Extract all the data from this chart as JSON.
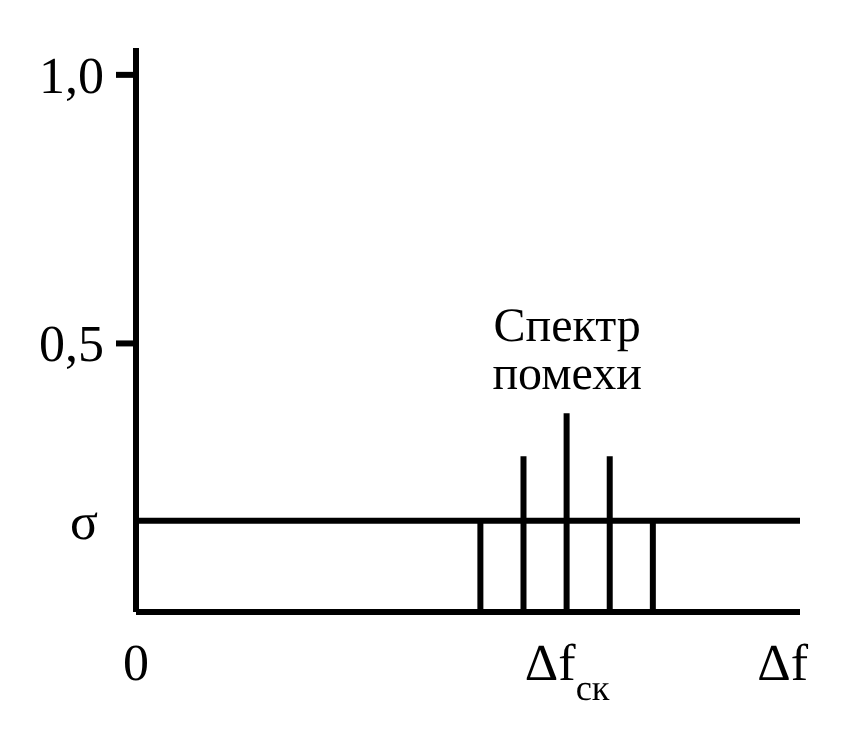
{
  "chart_data": {
    "type": "bar",
    "categories": [
      "0",
      null,
      null,
      null,
      null,
      null,
      null,
      null,
      null,
      null,
      "Δf$_{ск}$",
      null,
      null,
      null,
      null,
      "Δf"
    ],
    "values": [
      null,
      null,
      null,
      null,
      null,
      null,
      null,
      null,
      0.17,
      0.29,
      0.37,
      0.29,
      0.17,
      null,
      null,
      null
    ],
    "color": "#000000",
    "ylim": [
      0,
      1.05
    ],
    "yticks": [
      {
        "value": 0.5,
        "label": "0,5"
      },
      {
        "value": 1,
        "label": "1,0"
      }
    ],
    "ref_lines": [
      {
        "axis": "y",
        "value": 0.17,
        "label": "σ"
      }
    ],
    "annotations": [
      "Спектр помехи"
    ],
    "grid": false,
    "legend": false
  }
}
